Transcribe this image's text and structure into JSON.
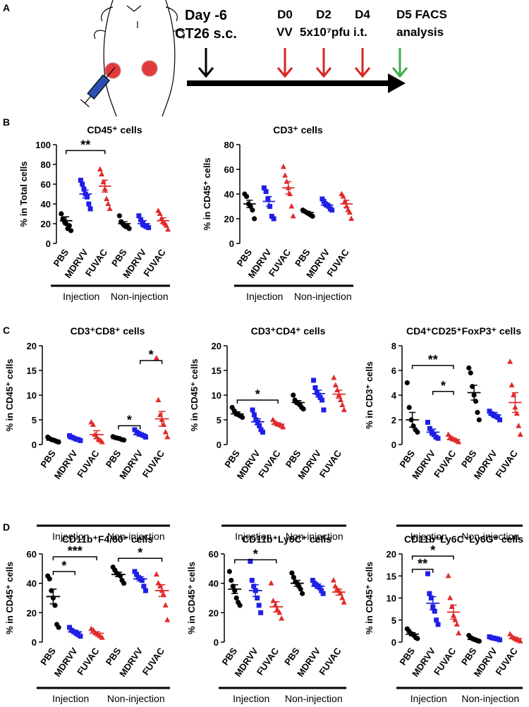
{
  "panel_labels": [
    "A",
    "B",
    "C",
    "D"
  ],
  "timeline": {
    "start_day": "Day -6",
    "start_event": "CT26 s.c.",
    "days": [
      "D0",
      "D2",
      "D4"
    ],
    "treatment_agent": "VV",
    "treatment_dose": "5x10⁷pfu i.t.",
    "end_day": "D5 FACS",
    "end_event": "analysis"
  },
  "chart_data": [
    {
      "type": "dot",
      "title": "CD45⁺ cells",
      "ylabel": "% in Total cells",
      "categories": [
        "PBS",
        "MDRVV",
        "FUVAC",
        "PBS",
        "MDRVV",
        "FUVAC"
      ],
      "groups": [
        "Injection",
        "Non-injection"
      ],
      "colors": [
        "#000000",
        "#1f1fe6",
        "#e02a2a",
        "#000000",
        "#1f1fe6",
        "#e02a2a"
      ],
      "markers": [
        "circle",
        "square",
        "triangle",
        "circle",
        "square",
        "triangle"
      ],
      "points": [
        [
          30,
          25,
          22,
          20,
          15,
          18,
          13
        ],
        [
          64,
          60,
          55,
          50,
          47,
          40,
          35
        ],
        [
          75,
          70,
          62,
          55,
          45,
          40,
          35
        ],
        [
          28,
          22,
          20,
          18,
          17,
          17,
          15
        ],
        [
          28,
          24,
          20,
          18,
          17,
          16
        ],
        [
          33,
          30,
          25,
          22,
          20,
          18,
          14
        ]
      ],
      "means": [
        23,
        50,
        58,
        20,
        20,
        23
      ],
      "sems": [
        4,
        4,
        6,
        2,
        3,
        3
      ],
      "ylim": [
        0,
        100
      ],
      "yticks": [
        0,
        20,
        40,
        60,
        80,
        100
      ],
      "significance": [
        {
          "from": 0,
          "to": 2,
          "y": 94,
          "label": "**"
        }
      ]
    },
    {
      "type": "dot",
      "title": "CD3⁺ cells",
      "ylabel": "% in CD45⁺ cells",
      "categories": [
        "PBS",
        "MDRVV",
        "FUVAC",
        "PBS",
        "MDRVV",
        "FUVAC"
      ],
      "groups": [
        "Injection",
        "Non-injection"
      ],
      "colors": [
        "#000000",
        "#1f1fe6",
        "#e02a2a",
        "#000000",
        "#1f1fe6",
        "#e02a2a"
      ],
      "markers": [
        "circle",
        "square",
        "triangle",
        "circle",
        "square",
        "triangle"
      ],
      "points": [
        [
          40,
          38,
          32,
          30,
          27,
          20
        ],
        [
          45,
          42,
          36,
          30,
          22,
          20
        ],
        [
          62,
          55,
          50,
          45,
          40,
          30,
          22
        ],
        [
          27,
          26,
          25,
          24,
          23,
          22
        ],
        [
          36,
          34,
          32,
          31,
          30,
          28,
          27
        ],
        [
          40,
          38,
          34,
          30,
          27,
          25,
          20
        ]
      ],
      "means": [
        32,
        34,
        45,
        25,
        31,
        32
      ],
      "sems": [
        3,
        4,
        5,
        1,
        1.5,
        3
      ],
      "ylim": [
        0,
        80
      ],
      "yticks": [
        0,
        20,
        40,
        60,
        80
      ],
      "significance": []
    },
    {
      "type": "dot",
      "title": "CD3⁺CD8⁺ cells",
      "ylabel": "% in CD45⁺ cells",
      "categories": [
        "PBS",
        "MDRVV",
        "FUVAC",
        "PBS",
        "MDRVV",
        "FUVAC"
      ],
      "groups": [
        "Injection",
        "Non-injection"
      ],
      "colors": [
        "#000000",
        "#1f1fe6",
        "#e02a2a",
        "#000000",
        "#1f1fe6",
        "#e02a2a"
      ],
      "markers": [
        "circle",
        "square",
        "triangle",
        "circle",
        "square",
        "triangle"
      ],
      "points": [
        [
          1.5,
          1.2,
          1.0,
          0.9,
          0.8,
          0.6,
          0.5
        ],
        [
          1.8,
          1.5,
          1.3,
          1.1,
          1.0,
          0.8
        ],
        [
          4.5,
          4,
          2,
          1.5,
          1,
          0.8,
          0.5
        ],
        [
          1.6,
          1.4,
          1.3,
          1.2,
          1,
          0.9
        ],
        [
          3,
          2.5,
          2.2,
          2,
          1.8,
          1.5
        ],
        [
          17.5,
          9,
          6,
          5,
          4,
          2.5,
          1.5
        ]
      ],
      "means": [
        0.9,
        1.2,
        2,
        1.2,
        2,
        5.2
      ],
      "sems": [
        0.15,
        0.15,
        0.8,
        0.1,
        0.3,
        1.5
      ],
      "ylim": [
        0,
        20
      ],
      "yticks": [
        0,
        5,
        10,
        15,
        20
      ],
      "significance": [
        {
          "from": 3,
          "to": 4,
          "y": 3.8,
          "label": "*"
        },
        {
          "from": 4,
          "to": 5,
          "y": 17,
          "label": "*"
        }
      ]
    },
    {
      "type": "dot",
      "title": "CD3⁺CD4⁺ cells",
      "ylabel": "% in CD45⁺ cells",
      "categories": [
        "PBS",
        "MDRVV",
        "FUVAC",
        "PBS",
        "MDRVV",
        "FUVAC"
      ],
      "groups": [
        "Injection",
        "Non-injection"
      ],
      "colors": [
        "#000000",
        "#1f1fe6",
        "#e02a2a",
        "#000000",
        "#1f1fe6",
        "#e02a2a"
      ],
      "markers": [
        "circle",
        "square",
        "triangle",
        "circle",
        "square",
        "triangle"
      ],
      "points": [
        [
          7.5,
          6.8,
          6.3,
          6,
          5.8,
          5.5
        ],
        [
          7,
          6,
          5,
          4.5,
          3.8,
          3,
          2.5
        ],
        [
          5,
          4.5,
          4.2,
          4,
          3.8,
          3.5
        ],
        [
          10,
          9,
          8.5,
          8.3,
          8,
          7.5,
          7.2
        ],
        [
          13,
          11.5,
          10.5,
          10,
          9.5,
          9,
          7
        ],
        [
          13.5,
          12,
          11,
          10,
          9,
          8,
          7
        ]
      ],
      "means": [
        6.2,
        4.6,
        4.1,
        8.5,
        10.3,
        10.2
      ],
      "sems": [
        0.4,
        0.6,
        0.3,
        0.4,
        0.7,
        0.8
      ],
      "ylim": [
        0,
        20
      ],
      "yticks": [
        0,
        5,
        10,
        15,
        20
      ],
      "significance": [
        {
          "from": 0,
          "to": 2,
          "y": 9,
          "label": "*"
        }
      ]
    },
    {
      "type": "dot",
      "title": "CD4⁺CD25⁺FoxP3⁺ cells",
      "ylabel": "% in CD3⁺ cells",
      "categories": [
        "PBS",
        "MDRVV",
        "FUVAC",
        "PBS",
        "MDRVV",
        "FUVAC"
      ],
      "groups": [
        "Injection",
        "Non-injection"
      ],
      "colors": [
        "#000000",
        "#1f1fe6",
        "#e02a2a",
        "#000000",
        "#1f1fe6",
        "#e02a2a"
      ],
      "markers": [
        "circle",
        "square",
        "triangle",
        "circle",
        "square",
        "triangle"
      ],
      "points": [
        [
          5,
          3,
          2,
          1.5,
          1.2,
          1
        ],
        [
          1.8,
          1.3,
          1,
          0.8,
          0.6,
          0.5
        ],
        [
          0.8,
          0.6,
          0.5,
          0.4,
          0.3,
          0.2
        ],
        [
          6.2,
          5.8,
          4.7,
          4,
          3.5,
          2.6,
          2
        ],
        [
          2.7,
          2.5,
          2.4,
          2.3,
          2.2,
          2
        ],
        [
          6.7,
          4.8,
          4,
          3,
          2.5,
          1.5,
          0.8
        ]
      ],
      "means": [
        2,
        1,
        0.4,
        4.2,
        2.4,
        3.4
      ],
      "sems": [
        0.6,
        0.25,
        0.1,
        0.6,
        0.2,
        0.8
      ],
      "ylim": [
        0,
        8
      ],
      "yticks": [
        0,
        2,
        4,
        6,
        8
      ],
      "significance": [
        {
          "from": 0,
          "to": 2,
          "y": 6.4,
          "label": "**"
        },
        {
          "from": 1,
          "to": 2,
          "y": 4.3,
          "label": "*"
        }
      ]
    },
    {
      "type": "dot",
      "title": "CD11b⁺F4/80⁺ cells",
      "ylabel": "% in CD45⁺ cells",
      "categories": [
        "PBS",
        "MDRVV",
        "FUVAC",
        "PBS",
        "MDRVV",
        "FUVAC"
      ],
      "groups": [
        "Injection",
        "Non-injection"
      ],
      "colors": [
        "#000000",
        "#1f1fe6",
        "#e02a2a",
        "#000000",
        "#1f1fe6",
        "#e02a2a"
      ],
      "markers": [
        "circle",
        "square",
        "triangle",
        "circle",
        "square",
        "triangle"
      ],
      "points": [
        [
          45,
          43,
          35,
          30,
          25,
          12,
          10
        ],
        [
          10,
          8,
          7,
          6,
          5,
          4
        ],
        [
          9,
          8,
          6,
          5,
          4,
          3
        ],
        [
          51,
          49,
          47,
          46,
          45,
          42,
          40
        ],
        [
          48,
          46,
          44,
          43,
          42,
          38,
          35
        ],
        [
          46,
          40,
          38,
          35,
          32,
          25,
          15
        ]
      ],
      "means": [
        31,
        7,
        6,
        46,
        43,
        35
      ],
      "sems": [
        5,
        1,
        1,
        1.5,
        1.5,
        4
      ],
      "ylim": [
        0,
        60
      ],
      "yticks": [
        0,
        20,
        40,
        60
      ],
      "significance": [
        {
          "from": 0,
          "to": 1,
          "y": 48,
          "label": "*"
        },
        {
          "from": 0,
          "to": 2,
          "y": 58,
          "label": "***"
        },
        {
          "from": 3,
          "to": 5,
          "y": 57,
          "label": "*"
        }
      ]
    },
    {
      "type": "dot",
      "title": "CD11b⁺Ly6C⁺ cells",
      "ylabel": "% in CD45⁺ cells",
      "categories": [
        "PBS",
        "MDRVV",
        "FUVAC",
        "PBS",
        "MDRVV",
        "FUVAC"
      ],
      "groups": [
        "Injection",
        "Non-injection"
      ],
      "colors": [
        "#000000",
        "#1f1fe6",
        "#e02a2a",
        "#000000",
        "#1f1fe6",
        "#e02a2a"
      ],
      "markers": [
        "circle",
        "square",
        "triangle",
        "circle",
        "square",
        "triangle"
      ],
      "points": [
        [
          48,
          42,
          38,
          35,
          30,
          27,
          25
        ],
        [
          55,
          42,
          38,
          35,
          30,
          25,
          20
        ],
        [
          40,
          28,
          25,
          22,
          20,
          16
        ],
        [
          47,
          44,
          41,
          40,
          38,
          36,
          33
        ],
        [
          42,
          40,
          39,
          38,
          37,
          35,
          33
        ],
        [
          42,
          38,
          36,
          35,
          33,
          30,
          27
        ]
      ],
      "means": [
        36,
        35,
        24,
        40,
        38,
        34
      ],
      "sems": [
        3,
        4,
        3.5,
        2,
        1.5,
        2
      ],
      "ylim": [
        0,
        60
      ],
      "yticks": [
        0,
        20,
        40,
        60
      ],
      "significance": [
        {
          "from": 0,
          "to": 2,
          "y": 56,
          "label": "*"
        }
      ]
    },
    {
      "type": "dot",
      "title": "CD11b⁺Ly6C⁻Ly6G⁺ cells",
      "ylabel": "% in CD45⁺ cells",
      "categories": [
        "PBS",
        "MDRVV",
        "FUVAC",
        "PBS",
        "MDRVV",
        "FUVAC"
      ],
      "groups": [
        "Injection",
        "Non-injection"
      ],
      "colors": [
        "#000000",
        "#1f1fe6",
        "#e02a2a",
        "#000000",
        "#1f1fe6",
        "#e02a2a"
      ],
      "markers": [
        "circle",
        "square",
        "triangle",
        "circle",
        "square",
        "triangle"
      ],
      "points": [
        [
          3,
          2.5,
          2,
          1.8,
          1.5,
          1,
          0.8
        ],
        [
          15.5,
          11,
          10,
          8,
          7,
          5,
          4
        ],
        [
          15,
          10,
          8,
          6,
          5,
          4,
          2
        ],
        [
          1.5,
          1,
          0.8,
          0.6,
          0.5,
          0.3,
          0.2
        ],
        [
          1.2,
          1,
          0.9,
          0.8,
          0.7,
          0.5
        ],
        [
          1.8,
          1.2,
          0.9,
          0.6,
          0.4,
          0.2
        ]
      ],
      "means": [
        1.8,
        8.8,
        6.8,
        0.6,
        0.8,
        0.8
      ],
      "sems": [
        0.35,
        1.5,
        1.6,
        0.2,
        0.1,
        0.3
      ],
      "ylim": [
        0,
        20
      ],
      "yticks": [
        0,
        5,
        10,
        15,
        20
      ],
      "significance": [
        {
          "from": 0,
          "to": 1,
          "y": 16.5,
          "label": "**"
        },
        {
          "from": 0,
          "to": 2,
          "y": 19.5,
          "label": "*"
        }
      ]
    }
  ]
}
